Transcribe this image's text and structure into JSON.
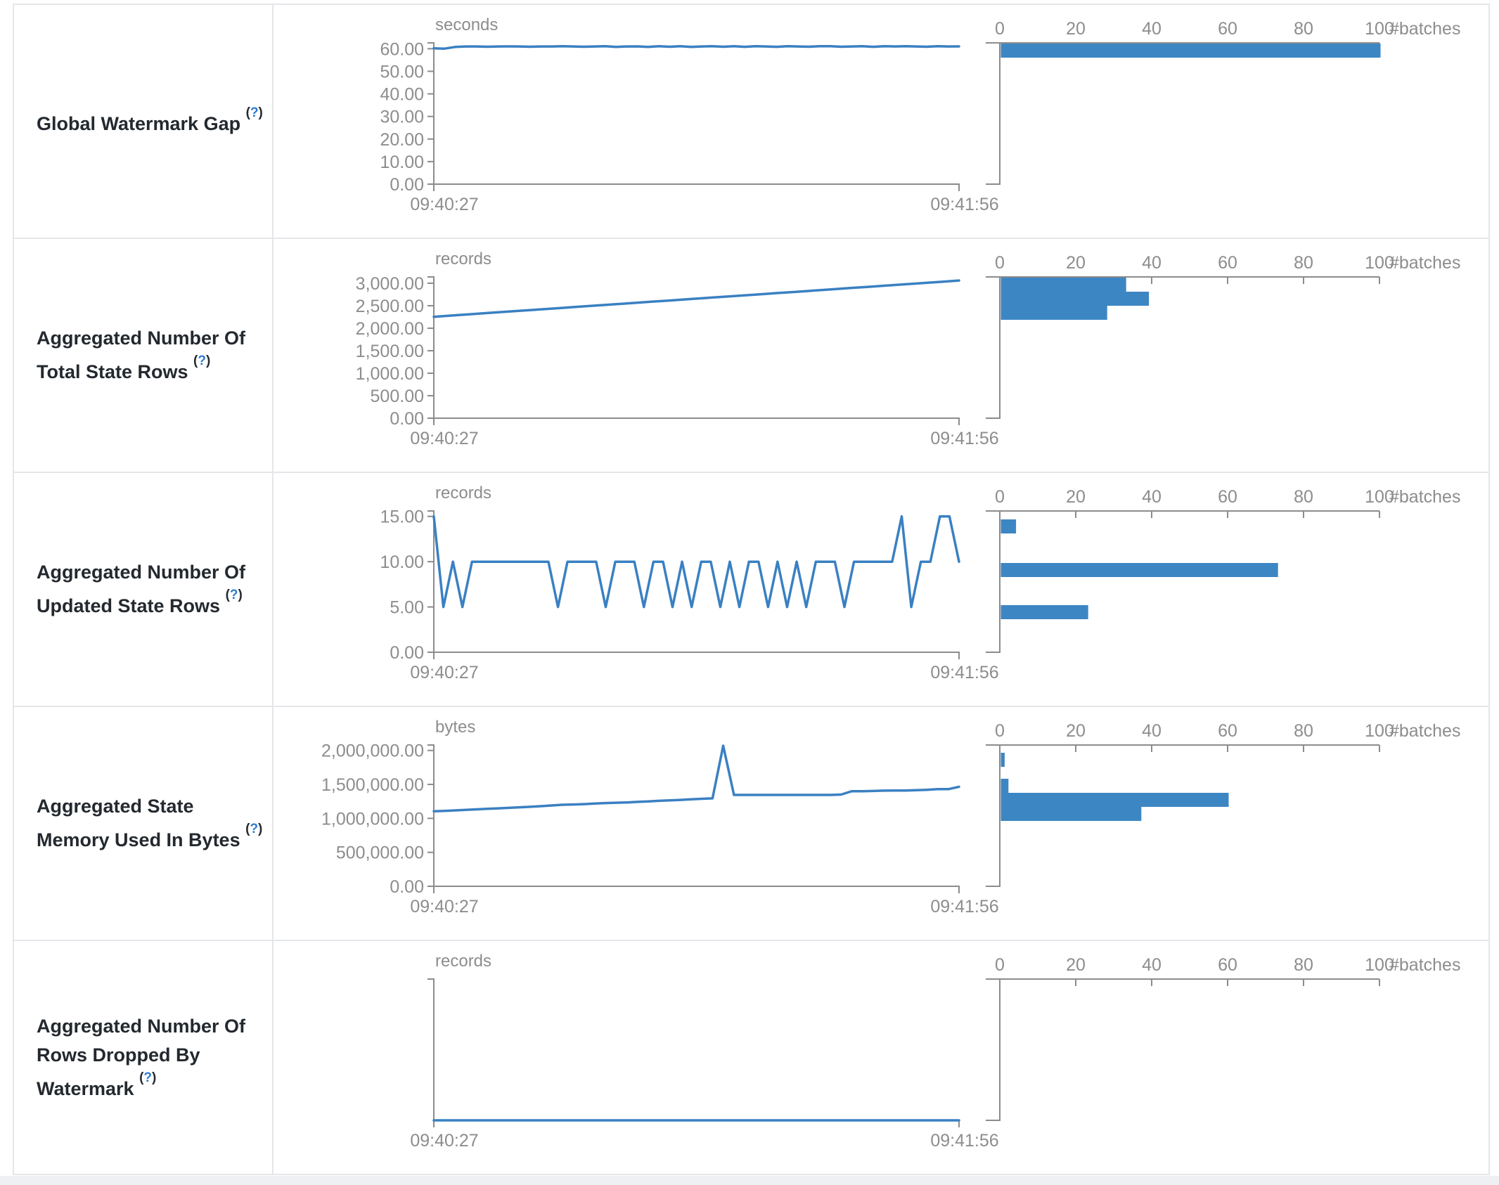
{
  "page": {
    "x_start_label": "09:40:27",
    "x_end_label": "09:41:56",
    "batches_label": "#batches",
    "hist_ticks": [
      {
        "v": 0,
        "label": "0"
      },
      {
        "v": 20,
        "label": "20"
      },
      {
        "v": 40,
        "label": "40"
      },
      {
        "v": 60,
        "label": "60"
      },
      {
        "v": 80,
        "label": "80"
      },
      {
        "v": 100,
        "label": "100"
      }
    ],
    "help": {
      "open": "(",
      "q": "?",
      "close": ")"
    },
    "colors": {
      "bar_blue": "#3d86c4",
      "line_blue": "#3a80c2",
      "axis_gray": "#8c8c8c",
      "tick_text_gray": "#8d8d8d",
      "label_text": "#24292f",
      "help_link_blue": "#2b7bd3",
      "border_gray": "#e4e6ea",
      "page_bottom_bg": "#eef0f4"
    }
  },
  "rows": [
    {
      "label": "Global Watermark Gap",
      "unit": "seconds",
      "y_ticks": [
        {
          "v": 60,
          "label": "60.00"
        },
        {
          "v": 50,
          "label": "50.00"
        },
        {
          "v": 40,
          "label": "40.00"
        },
        {
          "v": 30,
          "label": "30.00"
        },
        {
          "v": 20,
          "label": "20.00"
        },
        {
          "v": 10,
          "label": "10.00"
        },
        {
          "v": 0,
          "label": "0.00"
        }
      ]
    },
    {
      "label": "Aggregated Number Of Total State Rows",
      "unit": "records",
      "y_ticks": [
        {
          "v": 3000,
          "label": "3,000.00"
        },
        {
          "v": 2500,
          "label": "2,500.00"
        },
        {
          "v": 2000,
          "label": "2,000.00"
        },
        {
          "v": 1500,
          "label": "1,500.00"
        },
        {
          "v": 1000,
          "label": "1,000.00"
        },
        {
          "v": 500,
          "label": "500.00"
        },
        {
          "v": 0,
          "label": "0.00"
        }
      ]
    },
    {
      "label": "Aggregated Number Of Updated State Rows",
      "unit": "records",
      "y_ticks": [
        {
          "v": 15,
          "label": "15.00"
        },
        {
          "v": 10,
          "label": "10.00"
        },
        {
          "v": 5,
          "label": "5.00"
        },
        {
          "v": 0,
          "label": "0.00"
        }
      ]
    },
    {
      "label": "Aggregated State Memory Used In Bytes",
      "unit": "bytes",
      "y_ticks": [
        {
          "v": 2000000,
          "label": "2,000,000.00"
        },
        {
          "v": 1500000,
          "label": "1,500,000.00"
        },
        {
          "v": 1000000,
          "label": "1,000,000.00"
        },
        {
          "v": 500000,
          "label": "500,000.00"
        },
        {
          "v": 0,
          "label": "0.00"
        }
      ]
    },
    {
      "label": "Aggregated Number Of Rows Dropped By Watermark",
      "unit": "records",
      "y_ticks": []
    }
  ],
  "chart_data": [
    {
      "type": "line",
      "title": "Global Watermark Gap",
      "ylabel": "seconds",
      "x_start": "09:40:27",
      "x_end": "09:41:56",
      "y_axis_max": 62.6,
      "y_tick_values": [
        60,
        50,
        40,
        30,
        20,
        10,
        0
      ],
      "line_values": [
        60.2,
        60.05,
        60.8,
        61,
        61,
        60.9,
        61,
        61.05,
        61,
        60.9,
        61,
        61,
        61.1,
        61,
        60.9,
        61,
        61.1,
        60.8,
        61,
        61.05,
        60.8,
        61.15,
        60.9,
        61.1,
        60.8,
        61,
        61.1,
        60.9,
        61.15,
        60.85,
        61.1,
        61,
        60.85,
        61.15,
        61,
        60.9,
        61.1,
        61.15,
        60.9,
        61,
        61.1,
        60.85,
        61.15,
        61,
        61.1,
        61,
        60.9,
        61.1,
        61,
        61.05
      ],
      "histogram": {
        "type": "bar",
        "xlabel": "#batches",
        "x_ticks": [
          0,
          20,
          40,
          60,
          80,
          100
        ],
        "bins": [
          {
            "bin_top": 62.3,
            "count": 100
          }
        ]
      }
    },
    {
      "type": "line",
      "title": "Aggregated Number Of Total State Rows",
      "ylabel": "records",
      "x_start": "09:40:27",
      "x_end": "09:41:56",
      "y_axis_max": 3140,
      "y_tick_values": [
        3000,
        2500,
        2000,
        1500,
        1000,
        500,
        0
      ],
      "line_values": [
        2255,
        2283,
        2311,
        2338,
        2366,
        2394,
        2421,
        2449,
        2477,
        2505,
        2532,
        2560,
        2588,
        2615,
        2643,
        2671,
        2699,
        2726,
        2754,
        2782,
        2809,
        2837,
        2865,
        2893,
        2920,
        2948,
        2976,
        3003,
        3031,
        3060
      ],
      "histogram": {
        "type": "bar",
        "xlabel": "#batches",
        "x_ticks": [
          0,
          20,
          40,
          60,
          80,
          100
        ],
        "bins": [
          {
            "bin_top": 3124,
            "count": 33
          },
          {
            "bin_top": 2812,
            "count": 39
          },
          {
            "bin_top": 2500,
            "count": 28
          }
        ]
      }
    },
    {
      "type": "line",
      "title": "Aggregated Number Of Updated State Rows",
      "ylabel": "records",
      "x_start": "09:40:27",
      "x_end": "09:41:56",
      "y_axis_max": 15.6,
      "y_tick_values": [
        15,
        10,
        5,
        0
      ],
      "line_values": [
        15,
        5,
        10,
        5,
        10,
        10,
        10,
        10,
        10,
        10,
        10,
        10,
        10,
        5,
        10,
        10,
        10,
        10,
        5,
        10,
        10,
        10,
        5,
        10,
        10,
        5,
        10,
        5,
        10,
        10,
        5,
        10,
        5,
        10,
        10,
        5,
        10,
        5,
        10,
        5,
        10,
        10,
        10,
        5,
        10,
        10,
        10,
        10,
        10,
        15,
        5,
        10,
        10,
        15,
        15,
        10
      ],
      "histogram": {
        "type": "bar",
        "xlabel": "#batches",
        "x_ticks": [
          0,
          20,
          40,
          60,
          80,
          100
        ],
        "bins": [
          {
            "bin_top": 14.67,
            "count": 4
          },
          {
            "bin_top": 9.86,
            "count": 73
          },
          {
            "bin_top": 5.2,
            "count": 23
          }
        ]
      }
    },
    {
      "type": "line",
      "title": "Aggregated State Memory Used In Bytes",
      "ylabel": "bytes",
      "x_start": "09:40:27",
      "x_end": "09:41:56",
      "y_axis_max": 2080000,
      "y_tick_values": [
        2000000,
        1500000,
        1000000,
        500000,
        0
      ],
      "line_values": [
        1105000,
        1110000,
        1118000,
        1125000,
        1133000,
        1140000,
        1148000,
        1155000,
        1163000,
        1170000,
        1180000,
        1190000,
        1200000,
        1205000,
        1210000,
        1218000,
        1225000,
        1230000,
        1235000,
        1243000,
        1250000,
        1258000,
        1265000,
        1272000,
        1280000,
        1288000,
        1295000,
        2070000,
        1345000,
        1345000,
        1345000,
        1345000,
        1345000,
        1345000,
        1345000,
        1345000,
        1345000,
        1345000,
        1350000,
        1400000,
        1400000,
        1403000,
        1408000,
        1410000,
        1410000,
        1415000,
        1420000,
        1430000,
        1430000,
        1465000
      ],
      "histogram": {
        "type": "bar",
        "xlabel": "#batches",
        "x_ticks": [
          0,
          20,
          40,
          60,
          80,
          100
        ],
        "bins": [
          {
            "bin_top": 1966000,
            "count": 1
          },
          {
            "bin_top": 1583000,
            "count": 2
          },
          {
            "bin_top": 1376000,
            "count": 60
          },
          {
            "bin_top": 1169000,
            "count": 37
          }
        ]
      }
    },
    {
      "type": "line",
      "title": "Aggregated Number Of Rows Dropped By Watermark",
      "ylabel": "records",
      "x_start": "09:40:27",
      "x_end": "09:41:56",
      "y_axis_max": 1,
      "y_tick_values": [],
      "line_values": [
        0,
        0
      ],
      "histogram": {
        "type": "bar",
        "xlabel": "#batches",
        "x_ticks": [
          0,
          20,
          40,
          60,
          80,
          100
        ],
        "bins": []
      }
    }
  ]
}
